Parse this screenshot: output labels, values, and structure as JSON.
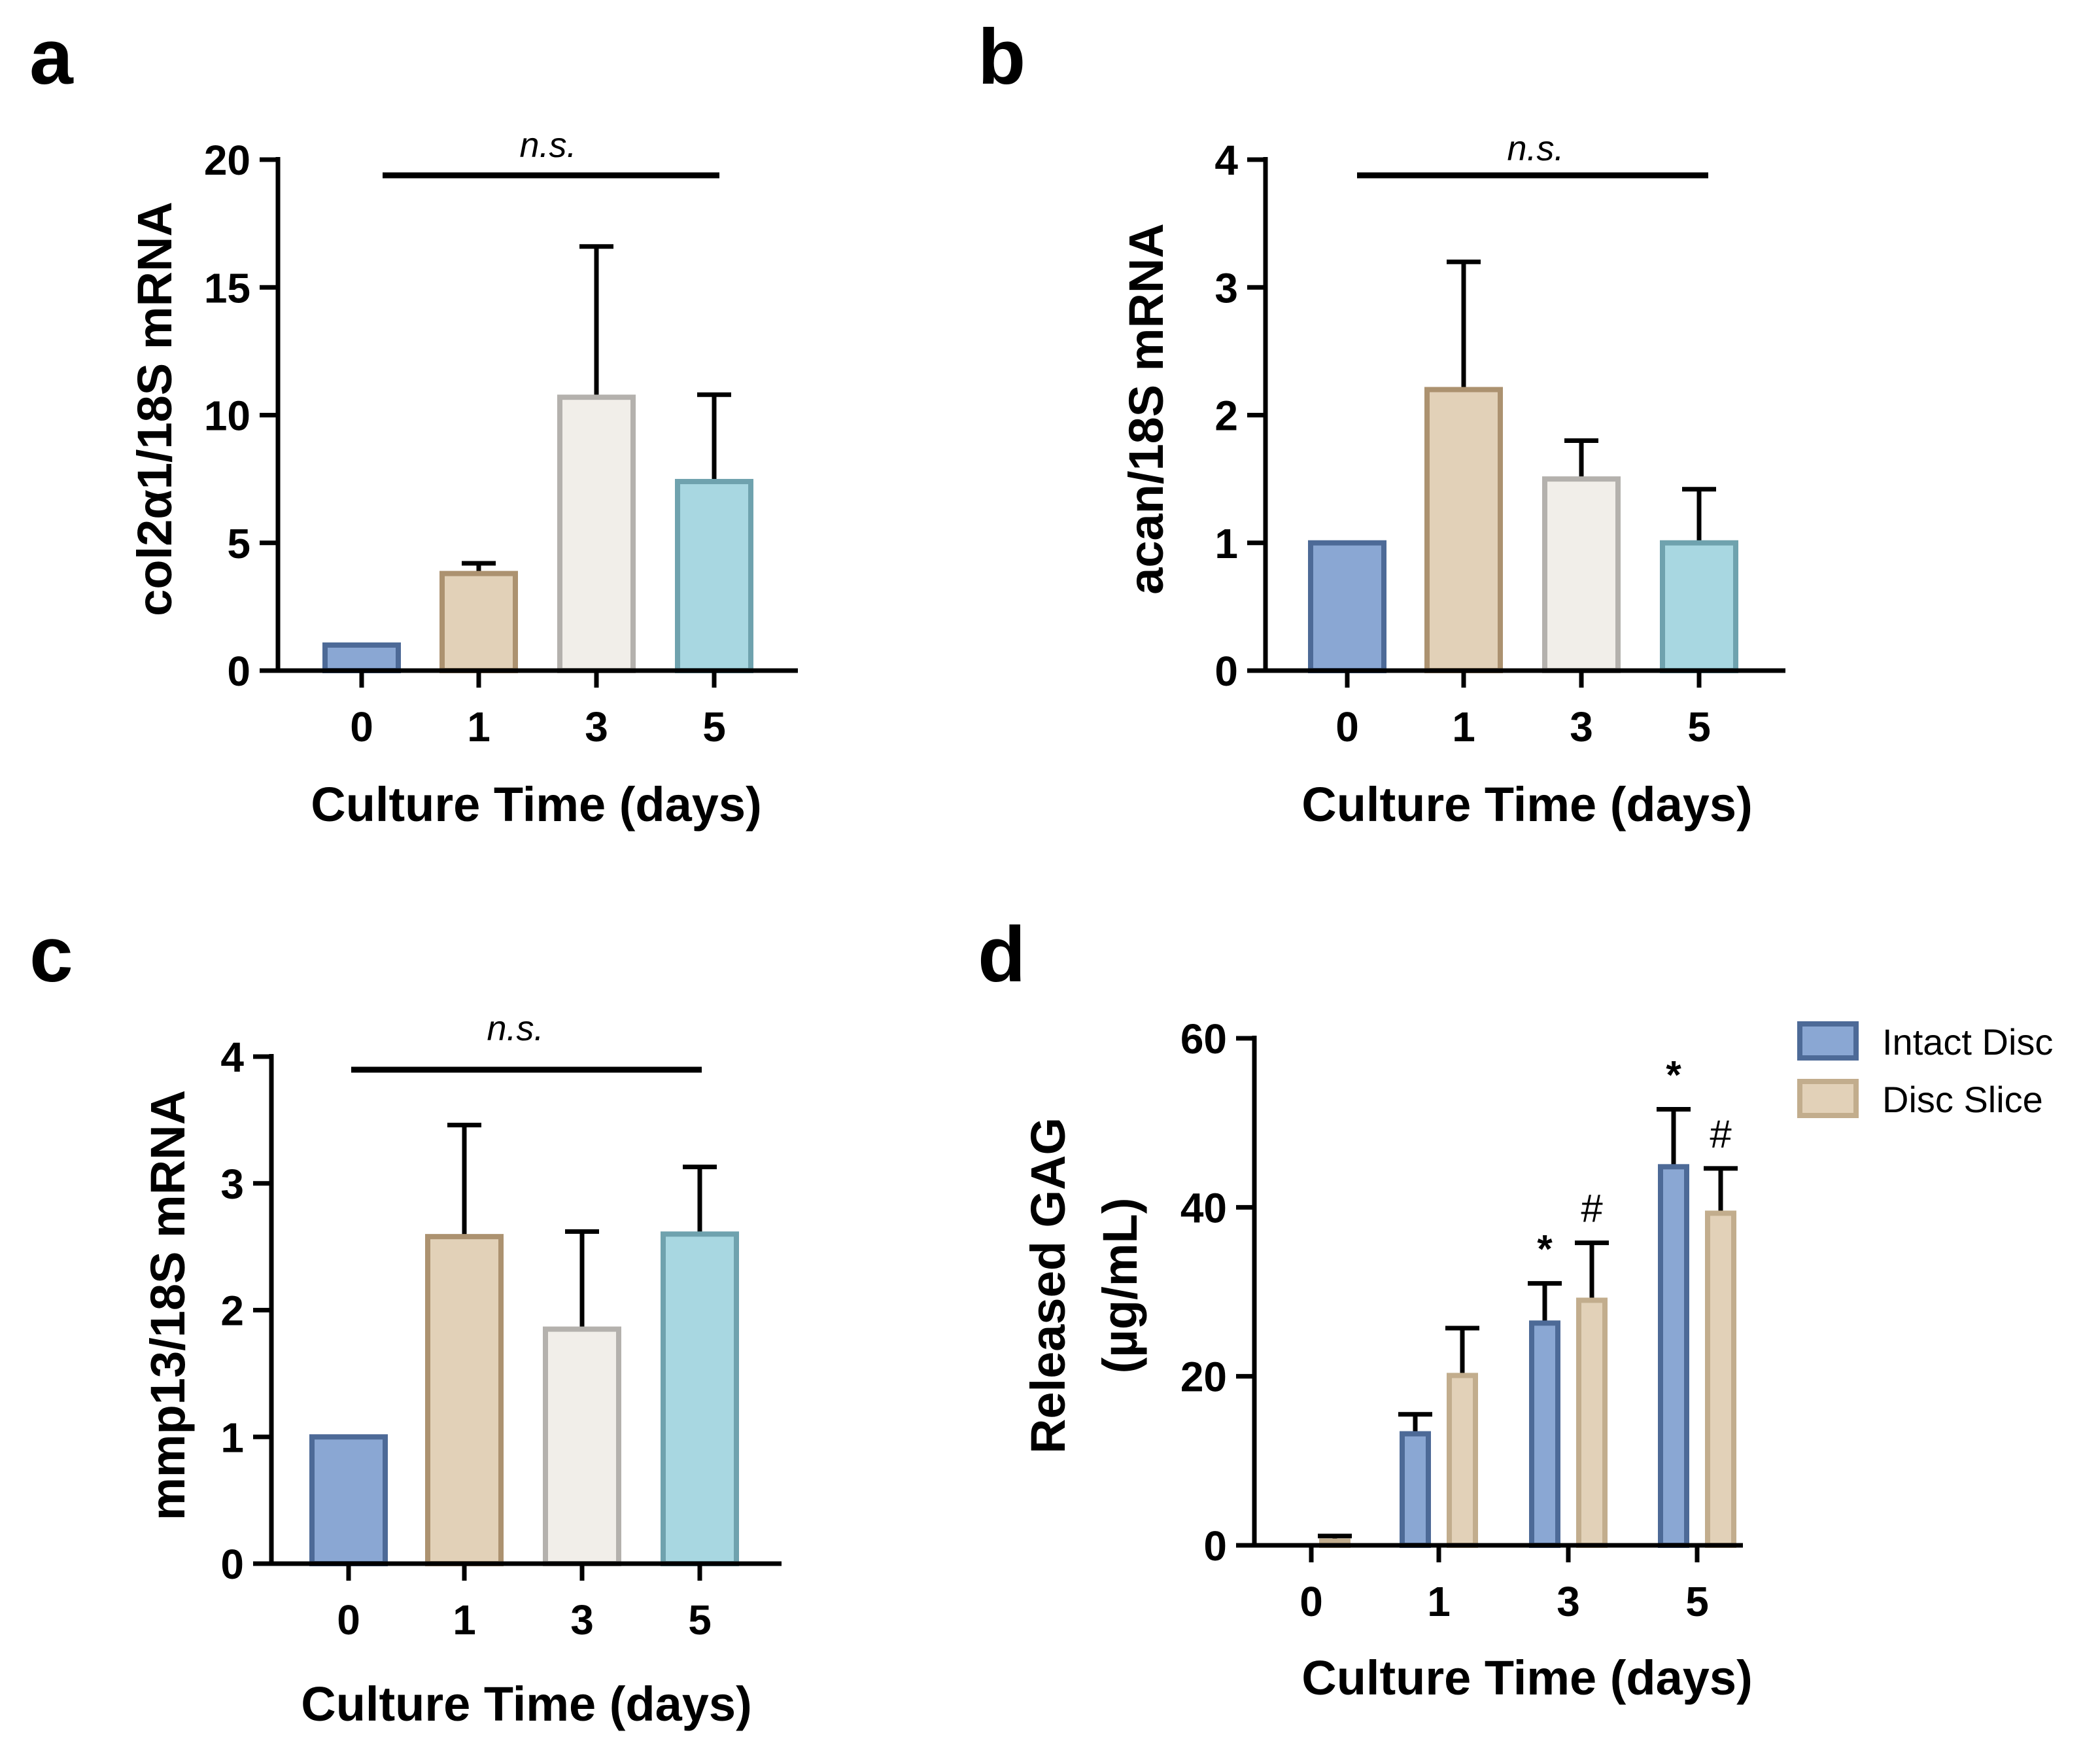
{
  "chart_data": [
    {
      "panel": "a",
      "type": "bar",
      "categories": [
        "0",
        "1",
        "3",
        "5"
      ],
      "values": [
        1.0,
        3.8,
        10.7,
        7.4
      ],
      "errors": [
        0,
        0.4,
        5.9,
        3.4
      ],
      "xlabel": "Culture Time (days)",
      "ylabel": "col2α1/18S mRNA",
      "ylim": [
        0,
        20
      ],
      "yticks": [
        "0",
        "5",
        "10",
        "15",
        "20"
      ],
      "annotation": "n.s.",
      "colors": [
        "#8aa7d3",
        "#e2d1b8",
        "#f1eee9",
        "#a8d7e1"
      ],
      "edge_colors": [
        "#4d6a97",
        "#ac9270",
        "#b4b1ad",
        "#6fa2ae"
      ]
    },
    {
      "panel": "b",
      "type": "bar",
      "categories": [
        "0",
        "1",
        "3",
        "5"
      ],
      "values": [
        1.0,
        2.2,
        1.5,
        1.0
      ],
      "errors": [
        0,
        1.0,
        0.3,
        0.42
      ],
      "xlabel": "Culture Time (days)",
      "ylabel": "acan/18S mRNA",
      "ylim": [
        0,
        4
      ],
      "yticks": [
        "0",
        "1",
        "2",
        "3",
        "4"
      ],
      "annotation": "n.s.",
      "colors": [
        "#8aa7d3",
        "#e2d1b8",
        "#f1eee9",
        "#a8d7e1"
      ],
      "edge_colors": [
        "#4d6a97",
        "#ac9270",
        "#b4b1ad",
        "#6fa2ae"
      ]
    },
    {
      "panel": "c",
      "type": "bar",
      "categories": [
        "0",
        "1",
        "3",
        "5"
      ],
      "values": [
        1.0,
        2.58,
        1.85,
        2.6
      ],
      "errors": [
        0,
        0.88,
        0.77,
        0.53
      ],
      "xlabel": "Culture Time (days)",
      "ylabel": "mmp13/18S mRNA",
      "ylim": [
        0,
        4
      ],
      "yticks": [
        "0",
        "1",
        "2",
        "3",
        "4"
      ],
      "annotation": "n.s.",
      "colors": [
        "#8aa7d3",
        "#e2d1b8",
        "#f1eee9",
        "#a8d7e1"
      ],
      "edge_colors": [
        "#4d6a97",
        "#ac9270",
        "#b4b1ad",
        "#6fa2ae"
      ]
    },
    {
      "panel": "d",
      "type": "bar",
      "categories": [
        "0",
        "1",
        "3",
        "5"
      ],
      "series": [
        {
          "name": "Intact Disc",
          "values": [
            0,
            13.2,
            26.3,
            44.8
          ],
          "errors": [
            0,
            2.3,
            4.7,
            6.8
          ],
          "markers": [
            "",
            "",
            "*",
            "*"
          ],
          "color": "#8aa7d3",
          "edge_color": "#4d6a97"
        },
        {
          "name": "Disc Slice",
          "values": [
            0.5,
            20.1,
            29.0,
            39.3
          ],
          "errors": [
            0.6,
            5.6,
            6.8,
            5.3
          ],
          "markers": [
            "",
            "",
            "#",
            "#"
          ],
          "color": "#e2d1b8",
          "edge_color": "#c2ad8d"
        }
      ],
      "xlabel": "Culture Time (days)",
      "ylabel": [
        "Released GAG",
        "(µg/mL)"
      ],
      "ylim": [
        0,
        60
      ],
      "yticks": [
        "0",
        "20",
        "40",
        "60"
      ],
      "legend_position": "top-right"
    }
  ]
}
